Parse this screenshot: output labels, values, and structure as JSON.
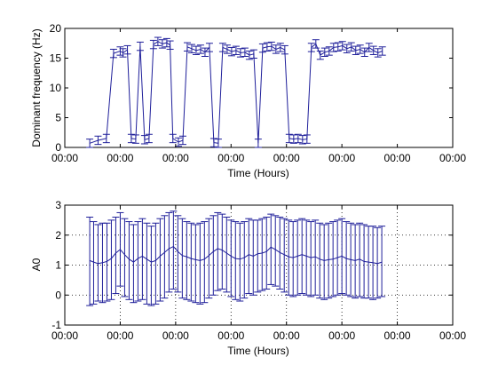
{
  "chart_data": [
    {
      "type": "line",
      "title": "",
      "xlabel": "Time (Hours)",
      "ylabel": "Dominant frequency (Hz)",
      "xtick_labels": [
        "00:00",
        "00:00",
        "00:00",
        "00:00",
        "00:00",
        "00:00",
        "00:00",
        "00:00"
      ],
      "ylim": [
        0,
        20
      ],
      "yticks": [
        0,
        5,
        10,
        15,
        20
      ],
      "xlim": [
        0,
        7
      ],
      "grid": false,
      "series": [
        {
          "color": "#1f1f9a",
          "error_bar_halfwidth": 0.7,
          "x": [
            0.45,
            0.6,
            0.75,
            0.88,
            1.0,
            1.05,
            1.13,
            1.2,
            1.28,
            1.36,
            1.44,
            1.52,
            1.6,
            1.68,
            1.76,
            1.84,
            1.9,
            1.95,
            2.05,
            2.13,
            2.21,
            2.29,
            2.37,
            2.45,
            2.53,
            2.61,
            2.69,
            2.77,
            2.85,
            2.93,
            3.01,
            3.09,
            3.17,
            3.25,
            3.33,
            3.41,
            3.49,
            3.57,
            3.65,
            3.73,
            3.81,
            3.89,
            3.97,
            4.05,
            4.13,
            4.21,
            4.29,
            4.37,
            4.45,
            4.53,
            4.61,
            4.69,
            4.77,
            4.85,
            4.93,
            5.01,
            5.09,
            5.17,
            5.25,
            5.33,
            5.41,
            5.49,
            5.57,
            5.65,
            5.73
          ],
          "y": [
            0.7,
            1.2,
            1.5,
            15.8,
            16.2,
            15.9,
            16.4,
            1.5,
            1.4,
            17.0,
            1.3,
            1.5,
            17.3,
            17.8,
            17.4,
            17.6,
            17.2,
            1.5,
            0.9,
            1.2,
            16.9,
            16.6,
            16.3,
            16.5,
            16.0,
            16.8,
            0.8,
            0.7,
            16.8,
            16.5,
            16.1,
            16.3,
            15.9,
            16.0,
            15.5,
            15.7,
            0.7,
            16.7,
            16.9,
            17.0,
            16.5,
            16.8,
            16.4,
            1.5,
            1.4,
            1.5,
            1.3,
            1.4,
            16.8,
            17.4,
            15.5,
            16.0,
            16.2,
            16.8,
            16.9,
            17.1,
            16.6,
            16.9,
            16.3,
            16.5,
            16.0,
            16.8,
            16.3,
            15.9,
            16.2
          ]
        }
      ]
    },
    {
      "type": "line",
      "title": "",
      "xlabel": "Time (Hours)",
      "ylabel": "A0",
      "xtick_labels": [
        "00:00",
        "00:00",
        "00:00",
        "00:00",
        "00:00",
        "00:00",
        "00:00",
        "00:00"
      ],
      "ylim": [
        -1,
        3
      ],
      "yticks": [
        -1,
        0,
        1,
        2,
        3
      ],
      "xlim": [
        0,
        7
      ],
      "grid": true,
      "series": [
        {
          "color": "#1f1f9a",
          "x": [
            0.45,
            0.52,
            0.6,
            0.68,
            0.76,
            0.84,
            0.92,
            1.0,
            1.08,
            1.16,
            1.24,
            1.32,
            1.4,
            1.48,
            1.56,
            1.64,
            1.72,
            1.8,
            1.88,
            1.96,
            2.04,
            2.12,
            2.2,
            2.28,
            2.36,
            2.44,
            2.52,
            2.6,
            2.68,
            2.76,
            2.84,
            2.92,
            3.0,
            3.08,
            3.16,
            3.24,
            3.32,
            3.4,
            3.48,
            3.56,
            3.64,
            3.72,
            3.8,
            3.88,
            3.96,
            4.04,
            4.12,
            4.2,
            4.28,
            4.36,
            4.44,
            4.52,
            4.6,
            4.68,
            4.76,
            4.84,
            4.92,
            5.0,
            5.08,
            5.16,
            5.24,
            5.32,
            5.4,
            5.48,
            5.56,
            5.64,
            5.72
          ],
          "y": [
            1.15,
            1.1,
            1.05,
            1.08,
            1.12,
            1.22,
            1.4,
            1.52,
            1.35,
            1.2,
            1.1,
            1.22,
            1.3,
            1.2,
            1.1,
            1.15,
            1.3,
            1.42,
            1.55,
            1.62,
            1.45,
            1.32,
            1.28,
            1.22,
            1.18,
            1.15,
            1.2,
            1.32,
            1.45,
            1.55,
            1.5,
            1.4,
            1.3,
            1.22,
            1.2,
            1.25,
            1.35,
            1.3,
            1.38,
            1.4,
            1.45,
            1.6,
            1.52,
            1.42,
            1.35,
            1.28,
            1.25,
            1.3,
            1.35,
            1.3,
            1.25,
            1.28,
            1.2,
            1.15,
            1.18,
            1.2,
            1.25,
            1.3,
            1.22,
            1.18,
            1.15,
            1.2,
            1.12,
            1.1,
            1.08,
            1.05,
            1.1
          ],
          "lower": [
            -0.35,
            -0.3,
            -0.2,
            -0.25,
            -0.2,
            -0.15,
            0.05,
            0.3,
            -0.05,
            -0.15,
            -0.25,
            -0.2,
            -0.15,
            -0.3,
            -0.35,
            -0.3,
            -0.2,
            -0.1,
            0.1,
            0.2,
            0.1,
            -0.1,
            -0.15,
            -0.2,
            -0.25,
            -0.3,
            -0.25,
            -0.1,
            0.0,
            0.15,
            0.2,
            0.1,
            -0.05,
            -0.15,
            -0.2,
            -0.1,
            0.05,
            0.0,
            0.1,
            0.15,
            0.2,
            0.35,
            0.3,
            0.2,
            0.1,
            0.0,
            -0.05,
            0.0,
            0.05,
            0.0,
            -0.05,
            0.0,
            -0.1,
            -0.15,
            -0.1,
            -0.05,
            0.0,
            0.05,
            0.0,
            -0.05,
            -0.1,
            -0.05,
            -0.1,
            -0.1,
            -0.15,
            -0.1,
            -0.05
          ],
          "upper": [
            2.6,
            2.45,
            2.35,
            2.4,
            2.4,
            2.5,
            2.6,
            2.75,
            2.55,
            2.45,
            2.35,
            2.45,
            2.55,
            2.4,
            2.3,
            2.4,
            2.55,
            2.65,
            2.75,
            2.8,
            2.65,
            2.55,
            2.45,
            2.4,
            2.35,
            2.4,
            2.45,
            2.55,
            2.65,
            2.75,
            2.7,
            2.6,
            2.5,
            2.45,
            2.4,
            2.45,
            2.55,
            2.5,
            2.5,
            2.55,
            2.6,
            2.7,
            2.65,
            2.6,
            2.55,
            2.5,
            2.45,
            2.5,
            2.55,
            2.5,
            2.45,
            2.5,
            2.4,
            2.35,
            2.4,
            2.45,
            2.5,
            2.55,
            2.45,
            2.4,
            2.35,
            2.4,
            2.35,
            2.3,
            2.3,
            2.25,
            2.3
          ]
        }
      ]
    }
  ]
}
